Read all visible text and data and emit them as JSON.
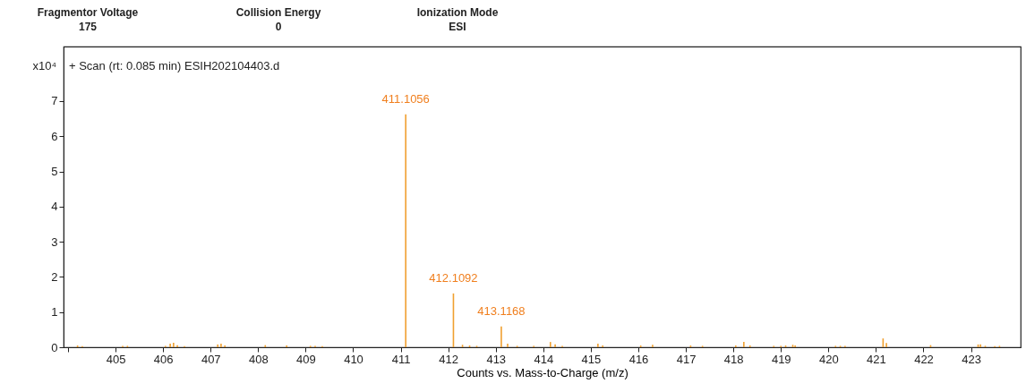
{
  "chart_data": {
    "type": "bar",
    "title": "+ Scan (rt: 0.085 min) ESIH202104403.d",
    "xlabel": "Counts vs. Mass-to-Charge (m/z)",
    "ylabel": "x10⁴",
    "annotations": [
      "Fragmentor Voltage",
      "175",
      "Collision Energy",
      "0",
      "Ionization Mode",
      "ESI",
      {
        "text": "411.1056",
        "x": 411.1056,
        "y": 6.62
      },
      {
        "text": "412.1092",
        "x": 412.1092,
        "y": 1.53
      },
      {
        "text": "413.1168",
        "x": 413.1168,
        "y": 0.59
      }
    ],
    "x": [
      404.2,
      404.3,
      405.15,
      405.25,
      406.05,
      406.15,
      406.22,
      406.3,
      406.45,
      407.15,
      407.22,
      407.3,
      408.15,
      408.6,
      409.1,
      409.2,
      409.35,
      411.1056,
      412.1092,
      412.3,
      412.45,
      412.6,
      413.1168,
      413.25,
      413.45,
      413.8,
      414.15,
      414.25,
      414.4,
      415.15,
      415.25,
      416.05,
      416.3,
      417.1,
      417.35,
      418.05,
      418.22,
      418.35,
      418.85,
      419.0,
      419.1,
      419.25,
      419.3,
      420.15,
      420.25,
      420.35,
      421.15,
      421.22,
      422.15,
      423.15,
      423.2,
      423.3,
      423.5,
      423.6
    ],
    "series": [
      {
        "color": "#f0a030",
        "values": [
          0.05,
          0.03,
          0.04,
          0.04,
          0.04,
          0.1,
          0.13,
          0.06,
          0.03,
          0.08,
          0.1,
          0.05,
          0.06,
          0.05,
          0.04,
          0.04,
          0.03,
          6.62,
          1.53,
          0.07,
          0.05,
          0.04,
          0.59,
          0.1,
          0.04,
          0.04,
          0.15,
          0.08,
          0.04,
          0.1,
          0.05,
          0.05,
          0.07,
          0.05,
          0.04,
          0.05,
          0.15,
          0.05,
          0.04,
          0.04,
          0.05,
          0.07,
          0.05,
          0.04,
          0.04,
          0.04,
          0.25,
          0.12,
          0.06,
          0.08,
          0.08,
          0.04,
          0.03,
          0.04
        ]
      }
    ],
    "xlim": [
      404,
      423.95
    ],
    "ylim": [
      0,
      8.55
    ],
    "xticks": [
      {
        "value": 404,
        "label": null
      },
      405,
      406,
      407,
      408,
      409,
      410,
      411,
      412,
      413,
      414,
      415,
      416,
      417,
      418,
      419,
      420,
      421,
      422,
      423
    ],
    "yticks": [
      0,
      1,
      2,
      3,
      4,
      5,
      6,
      7
    ],
    "grid": false
  }
}
